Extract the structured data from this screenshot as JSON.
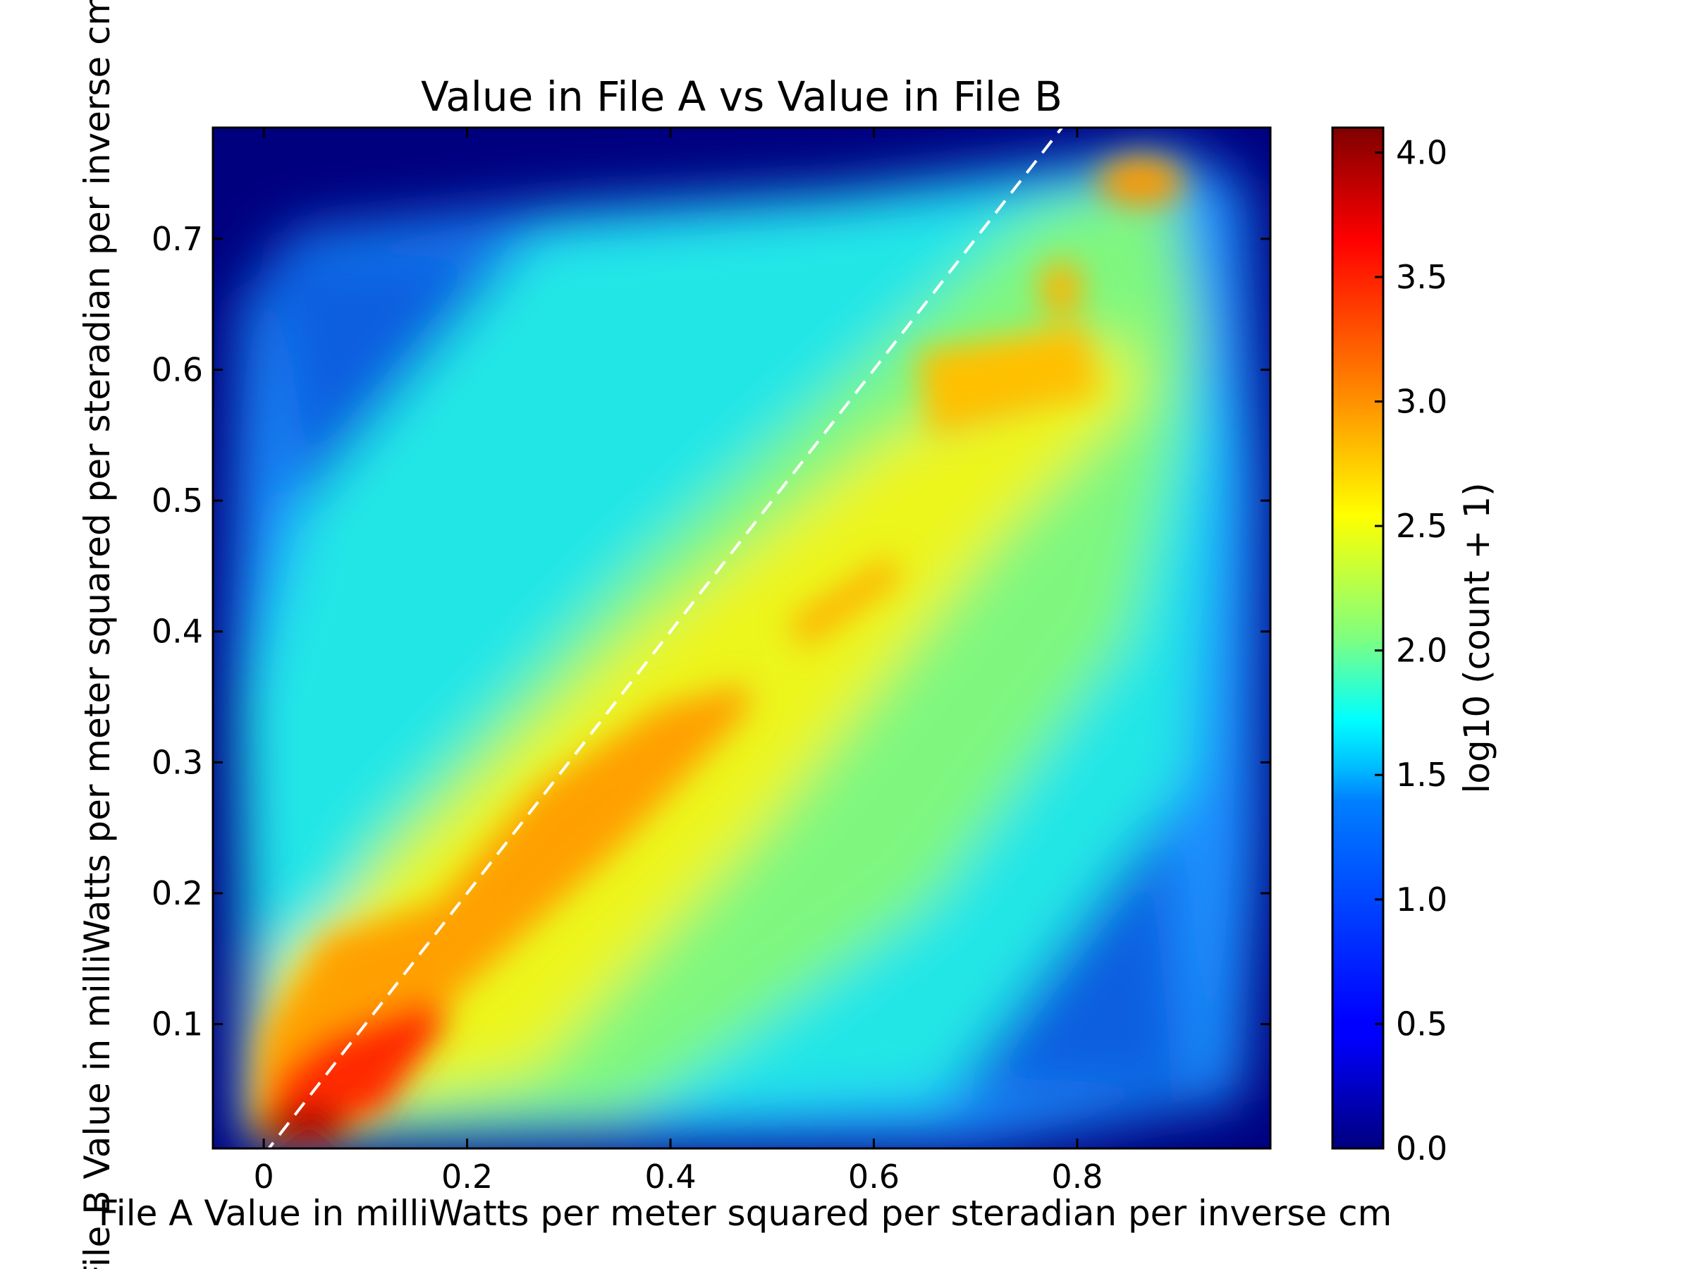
{
  "chart_data": {
    "type": "heatmap",
    "subtype": "hexbin",
    "title": "Value in File A vs Value in File B",
    "xlabel": "File A Value in milliWatts per meter squared per steradian per inverse cm",
    "ylabel": "File B Value in milliWatts per meter squared per steradian per inverse cm",
    "xlim": [
      -0.05,
      0.99
    ],
    "ylim": [
      0.005,
      0.785
    ],
    "x_ticks": [
      0,
      0.2,
      0.4,
      0.6,
      0.8
    ],
    "x_tick_labels": [
      "0",
      "0.2",
      "0.4",
      "0.6",
      "0.8"
    ],
    "y_ticks": [
      0.1,
      0.2,
      0.3,
      0.4,
      0.5,
      0.6,
      0.7
    ],
    "y_tick_labels": [
      "0.1",
      "0.2",
      "0.3",
      "0.4",
      "0.5",
      "0.6",
      "0.7"
    ],
    "colorbar": {
      "label": "log10 (count + 1)",
      "range": [
        0,
        4.1
      ],
      "ticks": [
        0,
        0.5,
        1,
        1.5,
        2,
        2.5,
        3,
        3.5,
        4
      ],
      "tick_labels": [
        "0.0",
        "0.5",
        "1.0",
        "1.5",
        "2.0",
        "2.5",
        "3.0",
        "3.5",
        "4.0"
      ],
      "colormap": "jet",
      "colormap_stops": [
        "#00007f",
        "#0000ff",
        "#007fff",
        "#00ffff",
        "#7fff7f",
        "#ffff00",
        "#ff7f00",
        "#ff0000",
        "#7f0000"
      ]
    },
    "background_color": "#00007f",
    "reference_line": {
      "style": "dashed",
      "color": "#ffffff",
      "x": [
        0,
        0.785
      ],
      "y": [
        0,
        0.785
      ]
    },
    "grid": false,
    "density_regions": [
      {
        "description": "data extent",
        "polygon_x": [
          -0.02,
          0.05,
          0.45,
          0.95,
          0.98,
          0.98,
          0.95,
          0.5,
          0.35,
          0.1,
          0.03,
          -0.01
        ],
        "polygon_y": [
          0.005,
          0.005,
          0.005,
          0.02,
          0.2,
          0.55,
          0.78,
          0.74,
          0.75,
          0.72,
          0.7,
          0.6
        ]
      },
      {
        "peak_x": 0.03,
        "peak_y": 0.02,
        "level": 4.0
      },
      {
        "peak_x": 0.1,
        "peak_y": 0.08,
        "level": 3.5
      },
      {
        "peak_x": 0.2,
        "peak_y": 0.15,
        "level": 3.2
      },
      {
        "peak_x": 0.38,
        "peak_y": 0.31,
        "level": 3.2
      },
      {
        "peak_x": 0.55,
        "peak_y": 0.4,
        "level": 3.0
      },
      {
        "peak_x": 0.82,
        "peak_y": 0.73,
        "level": 3.0
      },
      {
        "peak_x": 0.78,
        "peak_y": 0.66,
        "level": 2.9
      }
    ]
  }
}
